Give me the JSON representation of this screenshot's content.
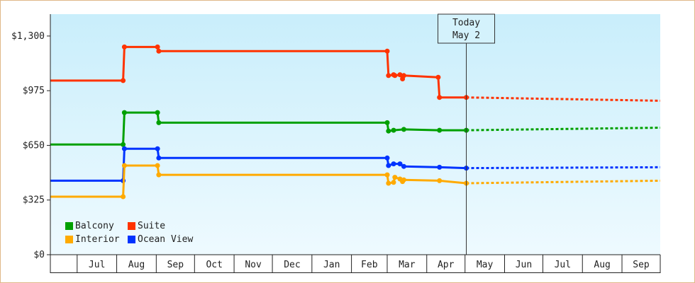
{
  "chart_data": {
    "type": "line",
    "title": "",
    "xlabel": "",
    "ylabel": "",
    "ylim": [
      0,
      1430
    ],
    "y_ticks": [
      {
        "value": 0,
        "label": "$0"
      },
      {
        "value": 325,
        "label": "$325"
      },
      {
        "value": 650,
        "label": "$650"
      },
      {
        "value": 975,
        "label": "$975"
      },
      {
        "value": 1300,
        "label": "$1,300"
      }
    ],
    "x_range": [
      "2022-06-10",
      "2023-10-01"
    ],
    "month_ticks": [
      {
        "label": "Jul",
        "date": "2022-07-01"
      },
      {
        "label": "Aug",
        "date": "2022-08-01"
      },
      {
        "label": "Sep",
        "date": "2022-09-01"
      },
      {
        "label": "Oct",
        "date": "2022-10-01"
      },
      {
        "label": "Nov",
        "date": "2022-11-01"
      },
      {
        "label": "Dec",
        "date": "2022-12-01"
      },
      {
        "label": "Jan",
        "date": "2023-01-01"
      },
      {
        "label": "Feb",
        "date": "2023-02-01"
      },
      {
        "label": "Mar",
        "date": "2023-03-01"
      },
      {
        "label": "Apr",
        "date": "2023-04-01"
      },
      {
        "label": "May",
        "date": "2023-05-01"
      },
      {
        "label": "Jun",
        "date": "2023-06-01"
      },
      {
        "label": "Jul",
        "date": "2023-07-01"
      },
      {
        "label": "Aug",
        "date": "2023-08-01"
      },
      {
        "label": "Sep",
        "date": "2023-09-01"
      },
      {
        "label": "",
        "date": "2023-10-01"
      }
    ],
    "today": {
      "label_line1": "Today",
      "label_line2": "May 2",
      "date": "2023-05-02"
    },
    "grid": false,
    "legend_position": "bottom-left",
    "series": [
      {
        "name": "Suite",
        "color": "#ff3300",
        "points": [
          {
            "x": "2022-06-10",
            "y": 1035
          },
          {
            "x": "2022-08-06",
            "y": 1035
          },
          {
            "x": "2022-08-07",
            "y": 1235
          },
          {
            "x": "2022-09-02",
            "y": 1235
          },
          {
            "x": "2022-09-03",
            "y": 1210
          },
          {
            "x": "2023-03-01",
            "y": 1210
          },
          {
            "x": "2023-03-02",
            "y": 1065
          },
          {
            "x": "2023-03-06",
            "y": 1070
          },
          {
            "x": "2023-03-07",
            "y": 1065
          },
          {
            "x": "2023-03-11",
            "y": 1070
          },
          {
            "x": "2023-03-13",
            "y": 1045
          },
          {
            "x": "2023-03-14",
            "y": 1065
          },
          {
            "x": "2023-04-10",
            "y": 1055
          },
          {
            "x": "2023-04-11",
            "y": 935
          },
          {
            "x": "2023-05-02",
            "y": 935
          }
        ],
        "forecast": [
          {
            "x": "2023-05-02",
            "y": 935
          },
          {
            "x": "2023-10-01",
            "y": 915
          }
        ]
      },
      {
        "name": "Balcony",
        "color": "#00a000",
        "points": [
          {
            "x": "2022-06-10",
            "y": 655
          },
          {
            "x": "2022-08-06",
            "y": 655
          },
          {
            "x": "2022-08-07",
            "y": 845
          },
          {
            "x": "2022-09-02",
            "y": 845
          },
          {
            "x": "2022-09-03",
            "y": 785
          },
          {
            "x": "2023-03-01",
            "y": 785
          },
          {
            "x": "2023-03-02",
            "y": 735
          },
          {
            "x": "2023-03-06",
            "y": 740
          },
          {
            "x": "2023-03-14",
            "y": 745
          },
          {
            "x": "2023-04-11",
            "y": 740
          },
          {
            "x": "2023-05-02",
            "y": 740
          }
        ],
        "forecast": [
          {
            "x": "2023-05-02",
            "y": 740
          },
          {
            "x": "2023-10-01",
            "y": 755
          }
        ]
      },
      {
        "name": "Ocean View",
        "color": "#0033ff",
        "points": [
          {
            "x": "2022-06-10",
            "y": 440
          },
          {
            "x": "2022-08-06",
            "y": 440
          },
          {
            "x": "2022-08-07",
            "y": 630
          },
          {
            "x": "2022-09-02",
            "y": 630
          },
          {
            "x": "2022-09-03",
            "y": 575
          },
          {
            "x": "2023-03-01",
            "y": 575
          },
          {
            "x": "2023-03-02",
            "y": 530
          },
          {
            "x": "2023-03-06",
            "y": 540
          },
          {
            "x": "2023-03-11",
            "y": 540
          },
          {
            "x": "2023-03-14",
            "y": 525
          },
          {
            "x": "2023-04-11",
            "y": 520
          },
          {
            "x": "2023-05-02",
            "y": 515
          }
        ],
        "forecast": [
          {
            "x": "2023-05-02",
            "y": 515
          },
          {
            "x": "2023-10-01",
            "y": 520
          }
        ]
      },
      {
        "name": "Interior",
        "color": "#ffaa00",
        "points": [
          {
            "x": "2022-06-10",
            "y": 345
          },
          {
            "x": "2022-08-06",
            "y": 345
          },
          {
            "x": "2022-08-07",
            "y": 530
          },
          {
            "x": "2022-09-02",
            "y": 530
          },
          {
            "x": "2022-09-03",
            "y": 475
          },
          {
            "x": "2023-03-01",
            "y": 475
          },
          {
            "x": "2023-03-02",
            "y": 425
          },
          {
            "x": "2023-03-06",
            "y": 430
          },
          {
            "x": "2023-03-07",
            "y": 460
          },
          {
            "x": "2023-03-11",
            "y": 450
          },
          {
            "x": "2023-03-13",
            "y": 435
          },
          {
            "x": "2023-03-14",
            "y": 445
          },
          {
            "x": "2023-04-11",
            "y": 440
          },
          {
            "x": "2023-05-02",
            "y": 425
          }
        ],
        "forecast": [
          {
            "x": "2023-05-02",
            "y": 425
          },
          {
            "x": "2023-10-01",
            "y": 440
          }
        ]
      }
    ],
    "legend": [
      {
        "name": "Balcony",
        "color": "#00a000"
      },
      {
        "name": "Suite",
        "color": "#ff3300"
      },
      {
        "name": "Interior",
        "color": "#ffaa00"
      },
      {
        "name": "Ocean View",
        "color": "#0033ff"
      }
    ]
  }
}
